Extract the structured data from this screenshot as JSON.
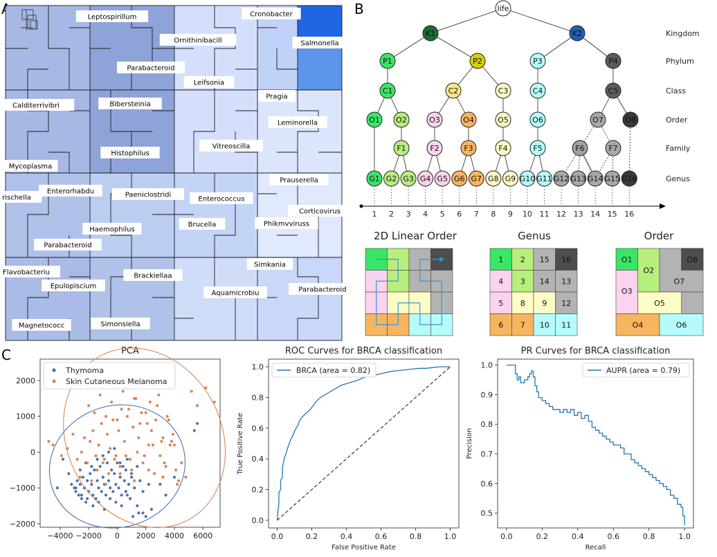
{
  "panels": {
    "a": "A",
    "b": "B",
    "c": "C"
  },
  "treemap": {
    "labels": [
      "Leptospirillum",
      "Cronobacter",
      "Ornithinibacill",
      "Salmonella",
      "Parabacteroid",
      "Leifsonia",
      "Pragia",
      "Calditerrivibri",
      "Bibersteinia",
      "Leminorella",
      "Vitreoscilla",
      "Histophilus",
      "Mycoplasma",
      "Prauserella",
      "Enterorhabdu",
      "Paeniclostridi",
      "Enterococcus",
      "rischella",
      "Corticovirus",
      "Brucella",
      "Phikmvviruss",
      "Haemophilus",
      "Parabacteroid",
      "Simkania",
      "Flavobacteriu",
      "Epulopiscium",
      "Brackiellaa",
      "Aquamicrobiu",
      "Parabacteroid",
      "Magnetococc",
      "Simonsiella"
    ]
  },
  "tree": {
    "root": "life",
    "kingdoms": [
      "K1",
      "K2"
    ],
    "phyla": [
      "P1",
      "P2",
      "P3",
      "P4"
    ],
    "classes": [
      "C1",
      "C2",
      "C3",
      "C4",
      "C5"
    ],
    "orders": [
      "O1",
      "O2",
      "O3",
      "O4",
      "O5",
      "O6",
      "O7",
      "O8"
    ],
    "families": [
      "F1",
      "F2",
      "F3",
      "F4",
      "F5",
      "F6",
      "F7"
    ],
    "genera": [
      "G1",
      "G2",
      "G3",
      "G4",
      "G5",
      "G6",
      "G7",
      "G8",
      "G9",
      "G10",
      "G11",
      "G12",
      "G13",
      "G14",
      "G15",
      "G16"
    ],
    "ranks": [
      "Kingdom",
      "Phylum",
      "Class",
      "Order",
      "Family",
      "Genus"
    ],
    "axis_ticks": [
      "1",
      "2",
      "3",
      "4",
      "5",
      "6",
      "7",
      "8",
      "9",
      "10",
      "11",
      "12",
      "13",
      "14",
      "15",
      "16"
    ]
  },
  "grids": {
    "linear": {
      "title": "2D Linear Order"
    },
    "genus": {
      "title": "Genus",
      "cells": [
        "1",
        "2",
        "15",
        "16",
        "4",
        "3",
        "14",
        "13",
        "5",
        "8",
        "9",
        "12",
        "6",
        "7",
        "10",
        "11"
      ]
    },
    "order": {
      "title": "Order",
      "labels": [
        "O1",
        "O2",
        "O8",
        "O7",
        "O3",
        "O5",
        "O4",
        "O6"
      ]
    }
  },
  "colors": {
    "green": "#39e667",
    "lightgreen": "#b8ee7d",
    "pink": "#fbd3ef",
    "orange": "#f7b560",
    "yellow": "#fffdc6",
    "cyan": "#b6fbfb",
    "gray": "#b3b3b3",
    "dark": "#4d4d4d",
    "blue": "#4c72b0",
    "orangeSeries": "#dd8452",
    "roc": "#1f77b4"
  },
  "chart_data": [
    {
      "type": "scatter",
      "title": "PCA",
      "xlabel": "",
      "ylabel": "",
      "xlim": [
        -5400,
        7200
      ],
      "ylim": [
        -2100,
        2600
      ],
      "xticks": [
        "−4000",
        "−2000",
        "0",
        "2000",
        "4000",
        "6000"
      ],
      "yticks": [
        "−2000",
        "−1000",
        "0",
        "1000",
        "2000"
      ],
      "legend": "upper-left",
      "series": [
        {
          "name": "Thymoma",
          "color": "#4c72b0",
          "ellipse": {
            "cx": 0,
            "cy": -400,
            "rx": 4800,
            "ry": 1700,
            "angle": -18
          },
          "x": [
            -3200,
            -3000,
            -2900,
            -2800,
            -2700,
            -2600,
            -2500,
            -2400,
            -2300,
            -2200,
            -2100,
            -2000,
            -1900,
            -1800,
            -1700,
            -1600,
            -1500,
            -1400,
            -1300,
            -1200,
            -1100,
            -1000,
            -900,
            -800,
            -700,
            -600,
            -500,
            -400,
            -300,
            -200,
            -100,
            0,
            100,
            200,
            300,
            400,
            500,
            600,
            700,
            800,
            900,
            1000,
            1200,
            1400,
            1600,
            1800,
            2000,
            2200,
            2400,
            -3400,
            -2600,
            -2200,
            -1800,
            -1400,
            -1000,
            -600,
            -200,
            200,
            600,
            1000,
            1400,
            1800,
            2600,
            3000,
            3400,
            4000,
            -3800,
            -2900,
            -2500,
            -2100,
            -1700,
            -1300,
            -900,
            -500,
            -100,
            300,
            700,
            1100,
            1500,
            -4200,
            5400,
            5600
          ],
          "y": [
            -900,
            -1000,
            -1100,
            -800,
            -1200,
            -900,
            -1300,
            -700,
            -1000,
            -1400,
            -800,
            -1100,
            -600,
            -900,
            -1200,
            -500,
            -1300,
            -800,
            -1000,
            -400,
            -1100,
            -700,
            -900,
            -1200,
            -300,
            -800,
            -1000,
            -500,
            -1100,
            -600,
            -900,
            -300,
            -1000,
            -700,
            -1200,
            -400,
            -800,
            -1100,
            -200,
            -900,
            -1300,
            -600,
            -1000,
            -1500,
            -800,
            -1700,
            -1800,
            -900,
            -1600,
            -600,
            -500,
            -300,
            -400,
            -200,
            -100,
            0,
            100,
            -300,
            -500,
            -700,
            -400,
            -1100,
            -600,
            -900,
            -1200,
            -700,
            -200,
            -1000,
            -1200,
            -1300,
            -1500,
            -1400,
            -1600,
            -1300,
            -1400,
            -1500,
            -1200,
            -1800,
            -1700,
            -1000,
            600,
            800
          ]
        },
        {
          "name": "Skin Cutaneous Melanoma",
          "color": "#dd8452",
          "ellipse": {
            "cx": 1900,
            "cy": 400,
            "rx": 5400,
            "ry": 2600,
            "angle": -28
          },
          "x": [
            -4800,
            -4500,
            -3900,
            -3500,
            -3100,
            -2800,
            -2500,
            -2300,
            -2100,
            -1900,
            -1700,
            -1500,
            -1300,
            -1100,
            -900,
            -700,
            -500,
            -300,
            -100,
            100,
            300,
            500,
            700,
            900,
            1100,
            1300,
            1500,
            1700,
            1900,
            2100,
            2300,
            2500,
            2700,
            2900,
            3100,
            3300,
            3500,
            3700,
            3900,
            4100,
            4300,
            4500,
            4800,
            5200,
            5600,
            6200,
            6800,
            -2000,
            -1600,
            -1200,
            -800,
            -400,
            0,
            400,
            800,
            1200,
            1600,
            2000,
            2400,
            2800,
            3200,
            3600,
            4000,
            -1400,
            -1000,
            -600,
            -200,
            200,
            600,
            1000,
            1400,
            1800,
            2200,
            2600,
            3000,
            3400,
            3800,
            -2600,
            -1800,
            -800,
            200,
            1200,
            2200,
            3200,
            4200,
            600,
            1600
          ],
          "y": [
            300,
            200,
            -100,
            100,
            500,
            -200,
            0,
            400,
            -300,
            300,
            600,
            -100,
            200,
            800,
            -200,
            500,
            100,
            900,
            -100,
            600,
            1200,
            300,
            1000,
            -200,
            700,
            1500,
            400,
            1100,
            -100,
            800,
            1400,
            200,
            900,
            1600,
            300,
            -300,
            1000,
            200,
            500,
            -500,
            -800,
            -300,
            -700,
            1700,
            1300,
            1800,
            1400,
            1300,
            1100,
            1600,
            1000,
            1400,
            900,
            1700,
            1200,
            1500,
            800,
            1100,
            600,
            1300,
            400,
            900,
            200,
            -500,
            -300,
            -600,
            -200,
            -400,
            -100,
            -500,
            0,
            -300,
            200,
            -600,
            -100,
            -400,
            300,
            -700,
            -800,
            -900,
            -600,
            -800,
            -500,
            -700,
            -900,
            1800,
            1900
          ]
        }
      ]
    },
    {
      "type": "line",
      "title": "ROC Curves for BRCA classification",
      "xlabel": "False Positive Rate",
      "ylabel": "True Positive Rate",
      "xlim": [
        -0.05,
        1.05
      ],
      "ylim": [
        -0.05,
        1.05
      ],
      "xticks": [
        "0.0",
        "0.2",
        "0.4",
        "0.6",
        "0.8",
        "1.0"
      ],
      "yticks": [
        "0.0",
        "0.2",
        "0.4",
        "0.6",
        "0.8",
        "1.0"
      ],
      "legend": "upper-left",
      "series": [
        {
          "name": "BRCA (area = 0.82)",
          "color": "#1f77b4",
          "x": [
            0,
            0.01,
            0.01,
            0.02,
            0.02,
            0.03,
            0.03,
            0.04,
            0.05,
            0.06,
            0.07,
            0.08,
            0.09,
            0.1,
            0.11,
            0.12,
            0.13,
            0.15,
            0.17,
            0.19,
            0.21,
            0.23,
            0.25,
            0.28,
            0.31,
            0.34,
            0.37,
            0.4,
            0.43,
            0.46,
            0.5,
            0.54,
            0.58,
            0.62,
            0.66,
            0.7,
            0.74,
            0.78,
            0.82,
            0.86,
            0.9,
            0.94,
            0.97,
            1.0
          ],
          "y": [
            0,
            0.12,
            0.18,
            0.2,
            0.26,
            0.28,
            0.34,
            0.4,
            0.43,
            0.47,
            0.5,
            0.53,
            0.55,
            0.58,
            0.6,
            0.62,
            0.65,
            0.68,
            0.7,
            0.72,
            0.75,
            0.78,
            0.8,
            0.82,
            0.84,
            0.86,
            0.88,
            0.89,
            0.9,
            0.91,
            0.93,
            0.94,
            0.95,
            0.96,
            0.97,
            0.975,
            0.98,
            0.985,
            0.99,
            0.99,
            0.995,
            1.0,
            1.0,
            1.0
          ]
        },
        {
          "name": "",
          "color": "#444444",
          "dashed": true,
          "x": [
            0,
            1
          ],
          "y": [
            0,
            1
          ]
        }
      ]
    },
    {
      "type": "line",
      "title": "PR Curves for BRCA classification",
      "xlabel": "Recall",
      "ylabel": "Precision",
      "xlim": [
        -0.05,
        1.05
      ],
      "ylim": [
        0.45,
        1.02
      ],
      "xticks": [
        "0.0",
        "0.2",
        "0.4",
        "0.6",
        "0.8",
        "1.0"
      ],
      "yticks": [
        "0.5",
        "0.6",
        "0.7",
        "0.8",
        "0.9",
        "1.0"
      ],
      "legend": "upper-right",
      "series": [
        {
          "name": "AUPR (area = 0.79)",
          "color": "#1f77b4",
          "x": [
            0,
            0.02,
            0.04,
            0.05,
            0.06,
            0.07,
            0.08,
            0.1,
            0.12,
            0.13,
            0.14,
            0.15,
            0.16,
            0.17,
            0.18,
            0.2,
            0.22,
            0.24,
            0.26,
            0.28,
            0.3,
            0.32,
            0.34,
            0.36,
            0.38,
            0.4,
            0.42,
            0.44,
            0.46,
            0.48,
            0.5,
            0.52,
            0.54,
            0.56,
            0.58,
            0.6,
            0.62,
            0.64,
            0.66,
            0.68,
            0.7,
            0.72,
            0.74,
            0.76,
            0.78,
            0.8,
            0.82,
            0.84,
            0.86,
            0.88,
            0.9,
            0.92,
            0.94,
            0.96,
            0.98,
            0.99,
            1.0
          ],
          "y": [
            1.0,
            1.0,
            1.0,
            0.97,
            0.95,
            0.96,
            0.94,
            0.95,
            0.96,
            0.97,
            0.98,
            0.96,
            0.93,
            0.91,
            0.89,
            0.88,
            0.87,
            0.86,
            0.85,
            0.85,
            0.84,
            0.85,
            0.84,
            0.85,
            0.83,
            0.84,
            0.82,
            0.83,
            0.81,
            0.79,
            0.78,
            0.77,
            0.76,
            0.75,
            0.74,
            0.73,
            0.73,
            0.72,
            0.7,
            0.7,
            0.68,
            0.67,
            0.66,
            0.65,
            0.64,
            0.63,
            0.62,
            0.61,
            0.6,
            0.59,
            0.58,
            0.56,
            0.55,
            0.53,
            0.52,
            0.49,
            0.46
          ]
        }
      ]
    }
  ]
}
